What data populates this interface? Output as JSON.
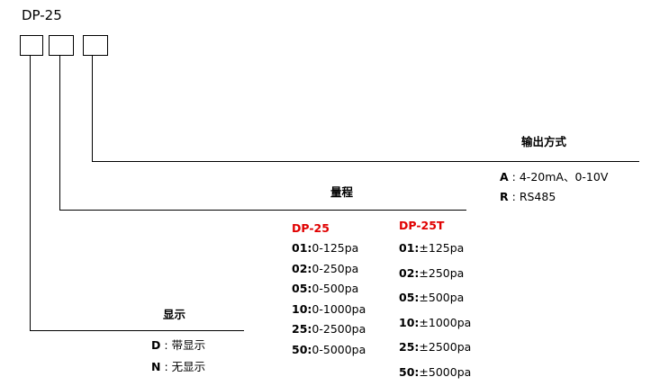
{
  "model": "DP-25",
  "sections": {
    "output": {
      "title": "输出方式",
      "options": [
        {
          "code": "A",
          "sep": " : ",
          "desc": "4-20mA、0-10V"
        },
        {
          "code": "R",
          "sep": " : ",
          "desc": "RS485"
        }
      ]
    },
    "range": {
      "title": "量程",
      "columns": [
        {
          "name": "DP-25",
          "items": [
            {
              "code": "01:",
              "desc": "0-125pa"
            },
            {
              "code": "02:",
              "desc": "0-250pa"
            },
            {
              "code": "05:",
              "desc": "0-500pa"
            },
            {
              "code": "10:",
              "desc": "0-1000pa"
            },
            {
              "code": "25:",
              "desc": "0-2500pa"
            },
            {
              "code": "50:",
              "desc": "0-5000pa"
            }
          ]
        },
        {
          "name": "DP-25T",
          "items": [
            {
              "code": "01:",
              "desc": "±125pa"
            },
            {
              "code": "02:",
              "desc": "±250pa"
            },
            {
              "code": "05:",
              "desc": "±500pa"
            },
            {
              "code": "10:",
              "desc": "±1000pa"
            },
            {
              "code": "25:",
              "desc": "±2500pa"
            },
            {
              "code": "50:",
              "desc": "±5000pa"
            }
          ]
        }
      ]
    },
    "display": {
      "title": "显示",
      "options": [
        {
          "code": "D",
          "sep": " : ",
          "desc": "带显示"
        },
        {
          "code": "N",
          "sep": " : ",
          "desc": "无显示"
        }
      ]
    }
  },
  "colors": {
    "highlight": "#e00000",
    "line": "#000000"
  }
}
